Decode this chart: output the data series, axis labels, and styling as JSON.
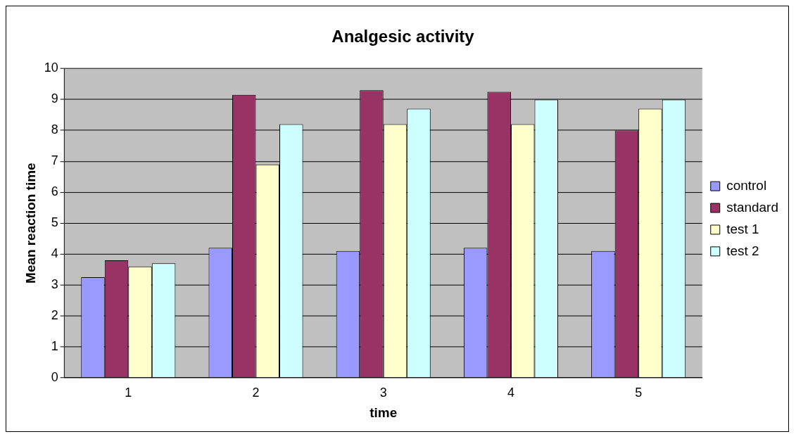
{
  "chart_data": {
    "type": "bar",
    "title": "Analgesic activity",
    "xlabel": "time",
    "ylabel": "Mean reaction time",
    "categories": [
      "1",
      "2",
      "3",
      "4",
      "5"
    ],
    "series": [
      {
        "name": "control",
        "color": "#9999ff",
        "values": [
          3.25,
          4.2,
          4.1,
          4.2,
          4.1
        ]
      },
      {
        "name": "standard",
        "color": "#993366",
        "values": [
          3.8,
          9.15,
          9.3,
          9.25,
          8.0
        ]
      },
      {
        "name": "test 1",
        "color": "#ffffcc",
        "values": [
          3.6,
          6.9,
          8.2,
          8.2,
          8.7
        ]
      },
      {
        "name": "test 2",
        "color": "#ccffff",
        "values": [
          3.7,
          8.2,
          8.7,
          9.0,
          9.0
        ]
      }
    ],
    "ylim": [
      0,
      10
    ],
    "yticks": [
      0,
      1,
      2,
      3,
      4,
      5,
      6,
      7,
      8,
      9,
      10
    ],
    "grid": "y",
    "legend": "right"
  }
}
